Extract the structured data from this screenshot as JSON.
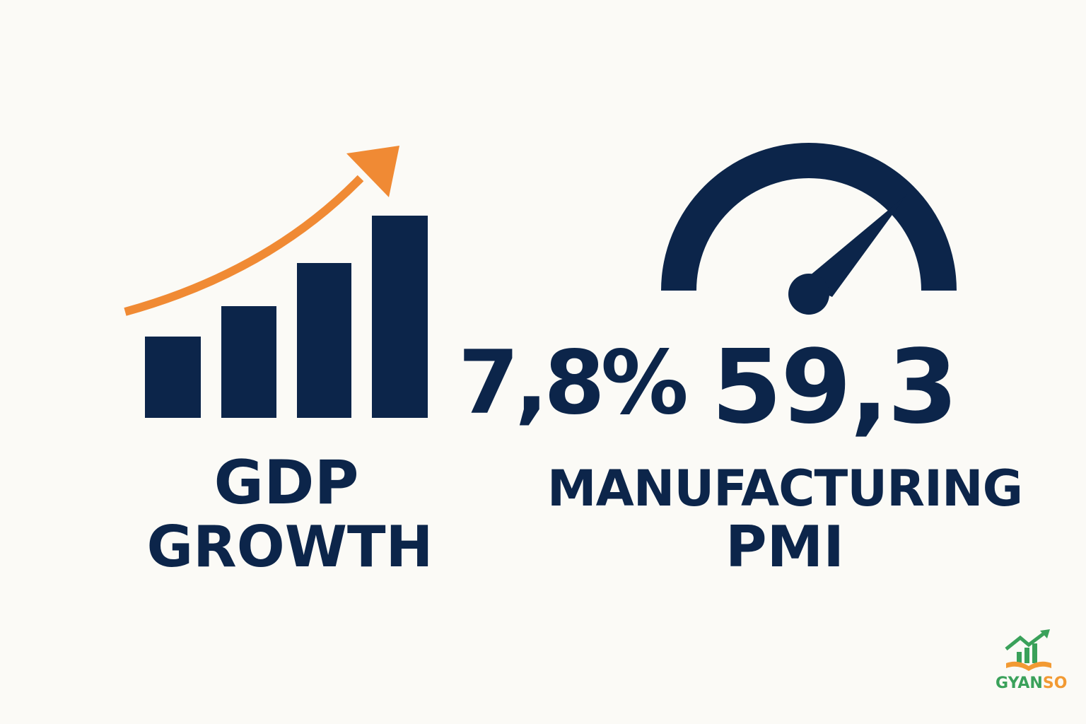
{
  "colors": {
    "background": "#FBFAF6",
    "navy": "#0C254A",
    "orange": "#F08A34",
    "brand_green": "#3AA15A",
    "brand_orange": "#F29A33"
  },
  "gdp": {
    "value": "7,8%",
    "label_line1": "GDP",
    "label_line2": "GROWTH",
    "icon": "bar-chart-rising-arrow-icon"
  },
  "pmi": {
    "value": "59,3",
    "label_line1": "MANUFACTURING",
    "label_line2": "PMI",
    "icon": "speedometer-gauge-icon",
    "gauge_level": 0.78
  },
  "brand": {
    "text_part1": "GYAN",
    "text_part2": "SO",
    "icon": "book-growth-chart-logo-icon"
  }
}
